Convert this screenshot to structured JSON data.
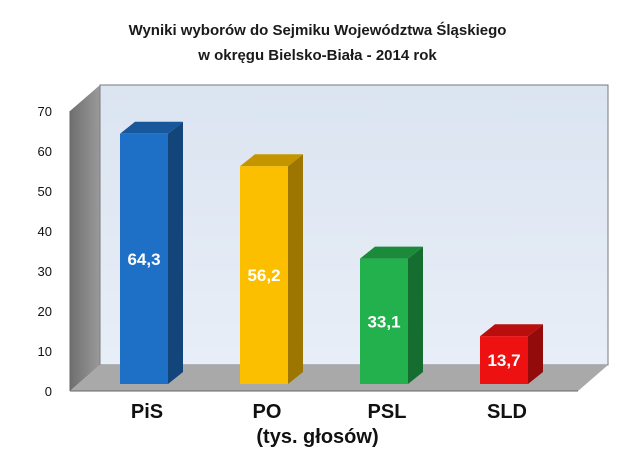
{
  "chart_data": {
    "type": "bar",
    "title": "Wyniki wyborów do Sejmiku Województwa Śląskiego",
    "subtitle": "w okręgu Bielsko-Biała - 2014 rok",
    "xlabel": "(tys. głosów)",
    "ylabel": "",
    "ylim": [
      0,
      70
    ],
    "yticks": [
      0,
      10,
      20,
      30,
      40,
      50,
      60,
      70
    ],
    "grid": false,
    "legend": "none",
    "categories": [
      "PiS",
      "PO",
      "PSL",
      "SLD"
    ],
    "values": [
      64.3,
      56.2,
      33.1,
      13.7
    ],
    "value_labels": [
      "64,3",
      "56,2",
      "33,1",
      "13,7"
    ],
    "colors": [
      "#1e6fc6",
      "#fcbf00",
      "#22b14c",
      "#ee1111"
    ]
  }
}
